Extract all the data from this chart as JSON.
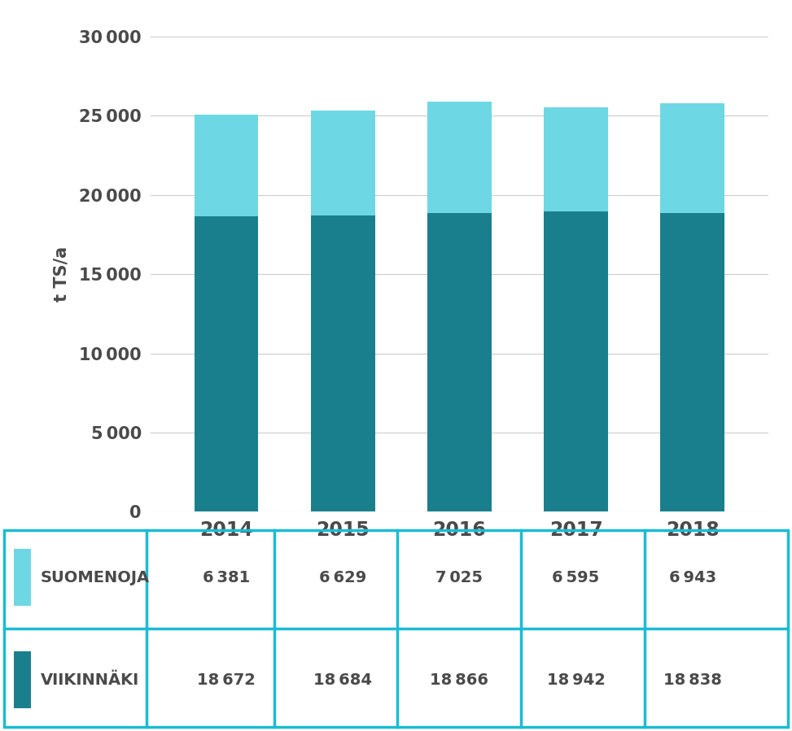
{
  "years": [
    "2014",
    "2015",
    "2016",
    "2017",
    "2018"
  ],
  "suomenoja": [
    6381,
    6629,
    7025,
    6595,
    6943
  ],
  "viikinmaki": [
    18672,
    18684,
    18866,
    18942,
    18838
  ],
  "color_suomenoja": "#6DD8E3",
  "color_viikinmaki": "#1A7F8C",
  "background_color": "#ffffff",
  "chart_bg": "#ffffff",
  "text_color": "#4a4a4a",
  "grid_color": "#cccccc",
  "ylabel": "t TS/a",
  "ylim": [
    0,
    30000
  ],
  "yticks": [
    0,
    5000,
    10000,
    15000,
    20000,
    25000,
    30000
  ],
  "legend_suomenoja": "SUOMENOJA",
  "legend_viikinmaki": "VIIKINNÄKI",
  "table_border_color": "#1ABCD4",
  "bar_width": 0.55,
  "xlim_left": -0.65,
  "xlim_right": 4.65
}
